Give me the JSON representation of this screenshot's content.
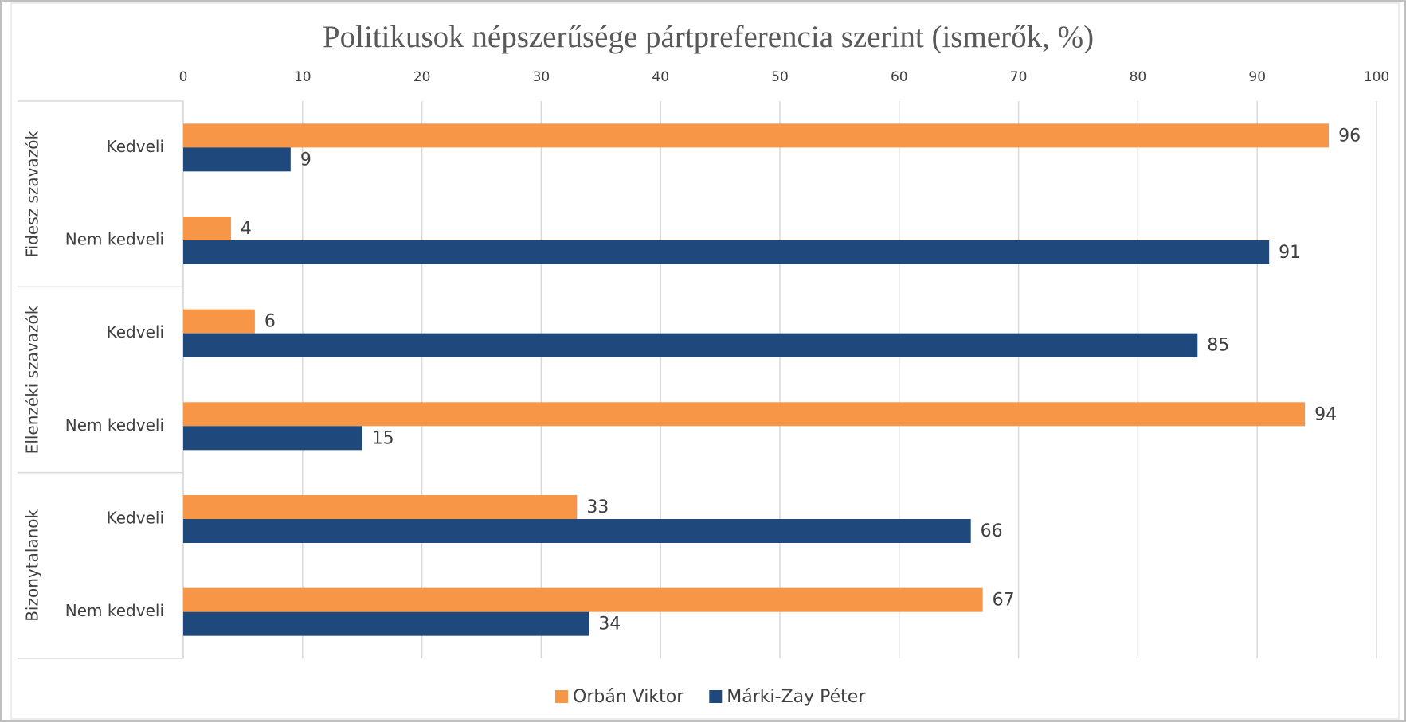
{
  "chart_data": {
    "type": "bar",
    "orientation": "horizontal",
    "title": "Politikusok népszerűsége pártpreferencia szerint (ismerők, %)",
    "groups": [
      "Fidesz szavazók",
      "Ellenzéki szavazók",
      "Bizonytalanok"
    ],
    "categories": [
      "Kedveli",
      "Nem kedveli",
      "Kedveli",
      "Nem kedveli",
      "Kedveli",
      "Nem kedveli"
    ],
    "series": [
      {
        "name": "Orbán Viktor",
        "color": "#f79646",
        "values": [
          96,
          4,
          6,
          94,
          33,
          67
        ]
      },
      {
        "name": "Márki-Zay Péter",
        "color": "#1f497d",
        "values": [
          9,
          91,
          85,
          15,
          66,
          34
        ]
      }
    ],
    "xlim": [
      0,
      100
    ],
    "xticks": [
      0,
      10,
      20,
      30,
      40,
      50,
      60,
      70,
      80,
      90,
      100
    ],
    "grid": true,
    "legend": "bottom"
  }
}
